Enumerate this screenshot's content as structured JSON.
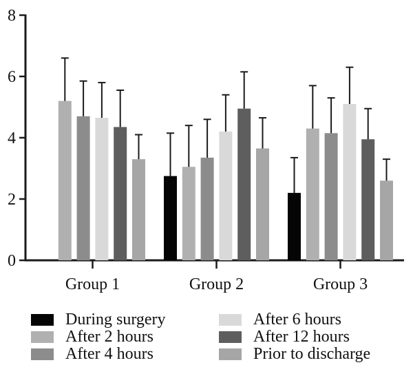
{
  "figure": {
    "background": "#ffffff",
    "axis_color": "#1a1a1a"
  },
  "chart_data": {
    "type": "bar",
    "title": "",
    "xlabel": "",
    "ylabel": "",
    "categories": [
      "Group 1",
      "Group 2",
      "Group 3"
    ],
    "series": [
      {
        "name": "During surgery",
        "color": "#050505",
        "values": [
          0,
          2.75,
          2.2
        ],
        "errors_up": [
          0,
          1.4,
          1.15
        ]
      },
      {
        "name": "After 2 hours",
        "color": "#b0b0b0",
        "values": [
          5.2,
          3.05,
          4.3
        ],
        "errors_up": [
          1.4,
          1.35,
          1.4
        ]
      },
      {
        "name": "After 4 hours",
        "color": "#8c8c8c",
        "values": [
          4.7,
          3.35,
          4.15
        ],
        "errors_up": [
          1.15,
          1.25,
          1.15
        ]
      },
      {
        "name": "After 6 hours",
        "color": "#d9d9d9",
        "values": [
          4.65,
          4.2,
          5.1
        ],
        "errors_up": [
          1.15,
          1.2,
          1.2
        ]
      },
      {
        "name": "After 12 hours",
        "color": "#5e5e5e",
        "values": [
          4.35,
          4.95,
          3.95
        ],
        "errors_up": [
          1.2,
          1.2,
          1.0
        ]
      },
      {
        "name": "Prior to discharge",
        "color": "#a6a6a6",
        "values": [
          3.3,
          3.65,
          2.6
        ],
        "errors_up": [
          0.8,
          1.0,
          0.7
        ]
      }
    ],
    "ylim": [
      0,
      8
    ],
    "yticks": [
      "0",
      "2",
      "4",
      "6",
      "8"
    ],
    "grid": false,
    "error_bars": "upper-only",
    "legend_position": "bottom-two-columns",
    "legend_columns": [
      [
        "During surgery",
        "After 2 hours",
        "After 4 hours"
      ],
      [
        "After 6 hours",
        "After 12 hours",
        "Prior to discharge"
      ]
    ]
  }
}
